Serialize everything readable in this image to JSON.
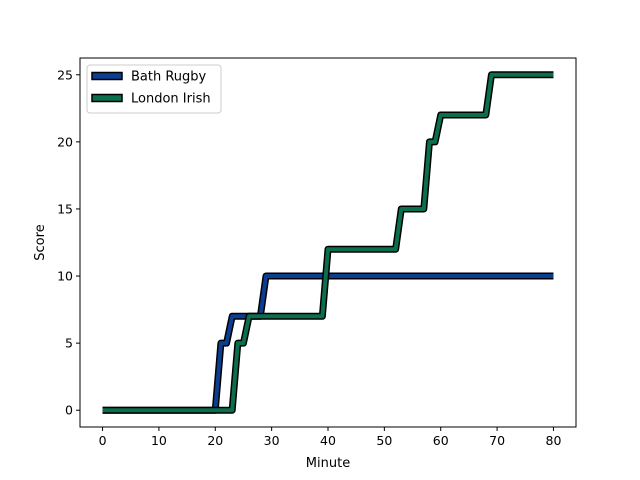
{
  "chart_data": {
    "type": "line",
    "title": "",
    "xlabel": "Minute",
    "ylabel": "Score",
    "xlim": [
      -4,
      84
    ],
    "ylim": [
      -1.25,
      26.25
    ],
    "xticks": [
      0,
      10,
      20,
      30,
      40,
      50,
      60,
      70,
      80
    ],
    "yticks": [
      0,
      5,
      10,
      15,
      20,
      25
    ],
    "grid": false,
    "legend_position": "top-left",
    "series": [
      {
        "name": "Bath Rugby",
        "color": "#0b3d91",
        "x": [
          0,
          20,
          21,
          22,
          23,
          28,
          29,
          80
        ],
        "y": [
          0,
          0,
          5,
          5,
          7,
          7,
          10,
          10
        ]
      },
      {
        "name": "London Irish",
        "color": "#0b6e4f",
        "x": [
          0,
          23,
          24,
          25,
          26,
          39,
          40,
          52,
          53,
          57,
          58,
          59,
          60,
          68,
          69,
          80
        ],
        "y": [
          0,
          0,
          5,
          5,
          7,
          7,
          12,
          12,
          15,
          15,
          20,
          20,
          22,
          22,
          25,
          25
        ]
      }
    ]
  }
}
